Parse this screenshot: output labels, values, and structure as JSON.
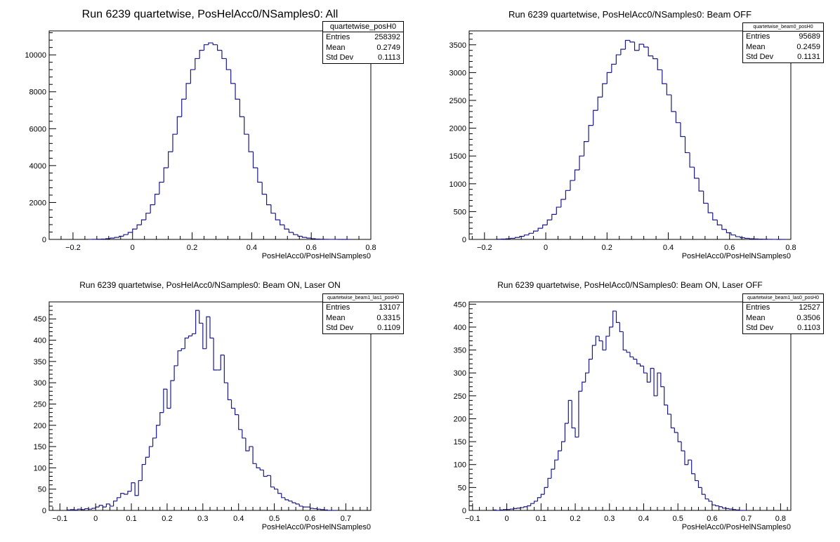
{
  "chart_data": [
    {
      "type": "bar",
      "title": "Run 6239 quartetwise, PosHelAcc0/NSamples0: All",
      "xlabel": "PosHelAcc0/PosHelNSamples0",
      "ylabel": "",
      "xlim": [
        -0.28,
        0.8
      ],
      "ylim": [
        0,
        11300
      ],
      "xticks": [
        -0.2,
        0,
        0.2,
        0.4,
        0.6,
        0.8
      ],
      "xtick_labels": [
        "−0.2",
        "0",
        "0.2",
        "0.4",
        "0.6",
        "0.8"
      ],
      "yticks": [
        0,
        2000,
        4000,
        6000,
        8000,
        10000
      ],
      "ytick_labels": [
        "0",
        "2000",
        "4000",
        "6000",
        "8000",
        "10000"
      ],
      "bin_start": -0.15,
      "bin_width": 0.015,
      "values": [
        2,
        5,
        12,
        20,
        40,
        70,
        110,
        170,
        260,
        380,
        560,
        790,
        1060,
        1420,
        1880,
        2450,
        3100,
        3880,
        4750,
        5700,
        6650,
        7600,
        8450,
        9200,
        9800,
        10250,
        10550,
        10650,
        10550,
        10250,
        9800,
        9200,
        8450,
        7600,
        6650,
        5700,
        4750,
        3880,
        3100,
        2450,
        1880,
        1420,
        1060,
        790,
        560,
        380,
        260,
        170,
        110,
        70,
        40,
        20,
        12,
        5,
        3,
        2,
        1,
        0,
        0
      ],
      "stats": {
        "name": "quartetwise_posH0",
        "entries_label": "Entries",
        "entries": "258392",
        "mean_label": "Mean",
        "mean": "0.2749",
        "stddev_label": "Std Dev",
        "stddev": "0.1113"
      }
    },
    {
      "type": "bar",
      "title": "Run 6239 quartetwise, PosHelAcc0/NSamples0: Beam OFF",
      "xlabel": "PosHelAcc0/PosHelNSamples0",
      "ylabel": "",
      "xlim": [
        -0.25,
        0.8
      ],
      "ylim": [
        0,
        3750
      ],
      "xticks": [
        -0.2,
        0,
        0.2,
        0.4,
        0.6,
        0.8
      ],
      "xtick_labels": [
        "−0.2",
        "0",
        "0.2",
        "0.4",
        "0.6",
        "0.8"
      ],
      "yticks": [
        0,
        500,
        1000,
        1500,
        2000,
        2500,
        3000,
        3500
      ],
      "ytick_labels": [
        "0",
        "500",
        "1000",
        "1500",
        "2000",
        "2500",
        "3000",
        "3500"
      ],
      "bin_start": -0.16,
      "bin_width": 0.015,
      "values": [
        3,
        7,
        12,
        20,
        35,
        55,
        80,
        110,
        150,
        200,
        260,
        350,
        450,
        580,
        720,
        880,
        1060,
        1250,
        1500,
        1760,
        2050,
        2320,
        2560,
        2800,
        3000,
        3150,
        3320,
        3420,
        3580,
        3550,
        3400,
        3510,
        3460,
        3300,
        3250,
        3050,
        2800,
        2600,
        2300,
        2100,
        1850,
        1560,
        1300,
        1100,
        870,
        650,
        480,
        350,
        260,
        180,
        120,
        80,
        50,
        30,
        20,
        12,
        8,
        5,
        3,
        2,
        1,
        0,
        0
      ],
      "stats": {
        "name": "quartetwise_beam0_posH0",
        "entries_label": "Entries",
        "entries": "95689",
        "mean_label": "Mean",
        "mean": "0.2459",
        "stddev_label": "Std Dev",
        "stddev": "0.1131"
      }
    },
    {
      "type": "bar",
      "title": "Run 6239 quartetwise, PosHelAcc0/NSamples0: Beam ON, Laser ON",
      "xlabel": "PosHelAcc0/PosHelNSamples0",
      "ylabel": "",
      "xlim": [
        -0.13,
        0.77
      ],
      "ylim": [
        0,
        490
      ],
      "xticks": [
        -0.1,
        0,
        0.1,
        0.2,
        0.3,
        0.4,
        0.5,
        0.6,
        0.7
      ],
      "xtick_labels": [
        "−0.1",
        "0",
        "0.1",
        "0.2",
        "0.3",
        "0.4",
        "0.5",
        "0.6",
        "0.7"
      ],
      "yticks": [
        0,
        50,
        100,
        150,
        200,
        250,
        300,
        350,
        400,
        450
      ],
      "ytick_labels": [
        "0",
        "50",
        "100",
        "150",
        "200",
        "250",
        "300",
        "350",
        "400",
        "450"
      ],
      "bin_start": -0.08,
      "bin_width": 0.01,
      "values": [
        1,
        2,
        1,
        3,
        2,
        4,
        3,
        5,
        8,
        12,
        8,
        15,
        10,
        22,
        30,
        40,
        38,
        45,
        65,
        35,
        70,
        108,
        125,
        150,
        170,
        200,
        230,
        285,
        240,
        305,
        340,
        375,
        380,
        405,
        410,
        415,
        470,
        440,
        380,
        455,
        405,
        330,
        330,
        365,
        300,
        260,
        240,
        225,
        190,
        170,
        140,
        150,
        110,
        100,
        95,
        80,
        82,
        55,
        50,
        40,
        30,
        25,
        22,
        18,
        15,
        10,
        8,
        8,
        5,
        4,
        3,
        2,
        1,
        0,
        0
      ],
      "stats": {
        "name": "quartetwise_beam1_las1_posH0",
        "entries_label": "Entries",
        "entries": "13107",
        "mean_label": "Mean",
        "mean": "0.3315",
        "stddev_label": "Std Dev",
        "stddev": "0.1109"
      }
    },
    {
      "type": "bar",
      "title": "Run 6239 quartetwise, PosHelAcc0/NSamples0: Beam ON, Laser OFF",
      "xlabel": "PosHelAcc0/PosHelNSamples0",
      "ylabel": "",
      "xlim": [
        -0.11,
        0.83
      ],
      "ylim": [
        0,
        455
      ],
      "xticks": [
        -0.1,
        0,
        0.1,
        0.2,
        0.3,
        0.4,
        0.5,
        0.6,
        0.7,
        0.8
      ],
      "xtick_labels": [
        "−0.1",
        "0",
        "0.1",
        "0.2",
        "0.3",
        "0.4",
        "0.5",
        "0.6",
        "0.7",
        "0.8"
      ],
      "yticks": [
        0,
        50,
        100,
        150,
        200,
        250,
        300,
        350,
        400,
        450
      ],
      "ytick_labels": [
        "0",
        "50",
        "100",
        "150",
        "200",
        "250",
        "300",
        "350",
        "400",
        "450"
      ],
      "bin_start": -0.04,
      "bin_width": 0.01,
      "values": [
        1,
        0,
        1,
        2,
        2,
        3,
        4,
        5,
        6,
        8,
        10,
        15,
        20,
        28,
        35,
        50,
        70,
        90,
        110,
        130,
        150,
        190,
        240,
        180,
        160,
        260,
        280,
        300,
        330,
        360,
        380,
        370,
        350,
        380,
        400,
        435,
        410,
        390,
        350,
        345,
        335,
        330,
        320,
        315,
        300,
        280,
        310,
        250,
        300,
        270,
        230,
        210,
        180,
        170,
        150,
        130,
        100,
        110,
        80,
        65,
        50,
        35,
        25,
        20,
        12,
        10,
        8,
        5,
        4,
        3,
        2,
        1,
        0,
        0
      ],
      "stats": {
        "name": "quartetwise_beam1_las0_posH0",
        "entries_label": "Entries",
        "entries": "12527",
        "mean_label": "Mean",
        "mean": "0.3506",
        "stddev_label": "Std Dev",
        "stddev": "0.1103"
      }
    }
  ],
  "colors": {
    "line": "#1a1a8c",
    "axis": "#000000"
  }
}
